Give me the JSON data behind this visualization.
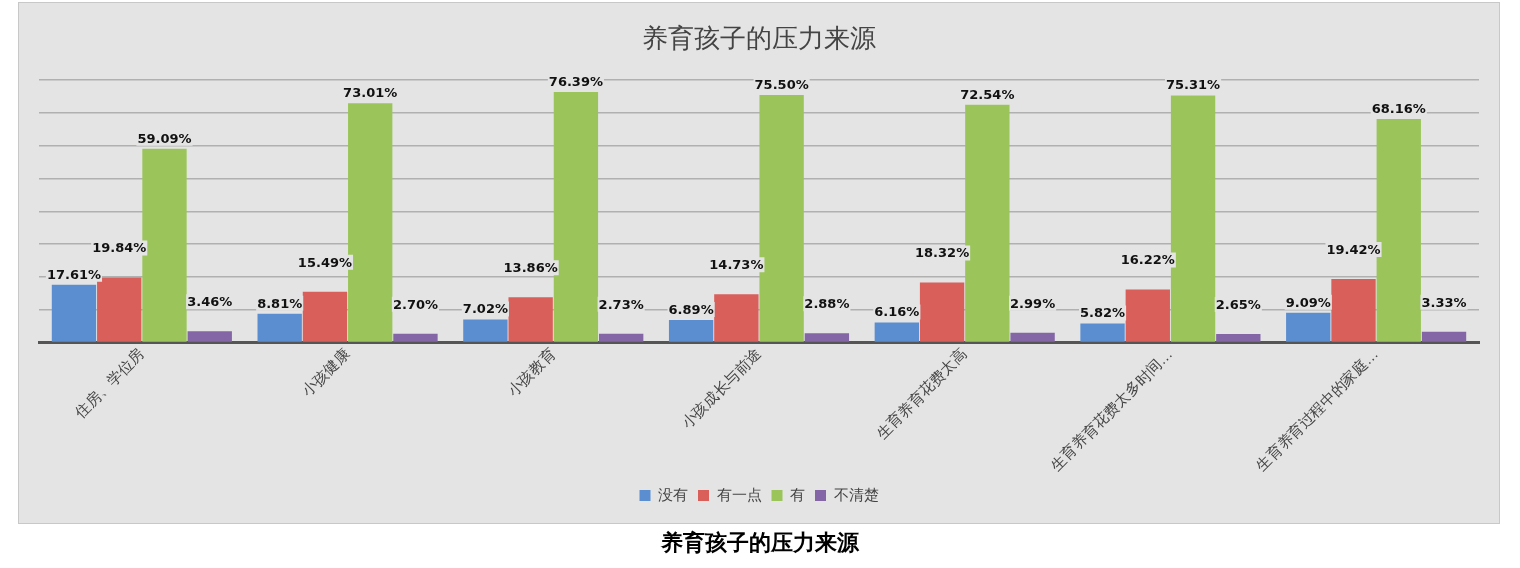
{
  "chart_data": {
    "type": "bar",
    "title": "养育孩子的压力来源",
    "categories": [
      "住房、学位房",
      "小孩健康",
      "小孩教育",
      "小孩成长与前途",
      "生育养育花费太高",
      "生育养育花费太多时间…",
      "生育养育过程中的家庭…"
    ],
    "series": [
      {
        "name": "没有",
        "color": "#5b8ed0",
        "values": [
          17.61,
          8.81,
          7.02,
          6.89,
          6.16,
          5.82,
          9.09
        ],
        "value_labels": [
          "17.61%",
          "8.81%",
          "7.02%",
          "6.89%",
          "6.16%",
          "5.82%",
          "9.09%"
        ]
      },
      {
        "name": "有一点",
        "color": "#d95f5b",
        "values": [
          19.84,
          15.49,
          13.86,
          14.73,
          18.32,
          16.22,
          19.42
        ],
        "value_labels": [
          "19.84%",
          "15.49%",
          "13.86%",
          "14.73%",
          "18.32%",
          "16.22%",
          "19.42%"
        ]
      },
      {
        "name": "有",
        "color": "#9bc55a",
        "values": [
          59.09,
          73.01,
          76.39,
          75.5,
          72.54,
          75.31,
          68.16
        ],
        "value_labels": [
          "59.09%",
          "73.01%",
          "76.39%",
          "75.50%",
          "72.54%",
          "75.31%",
          "68.16%"
        ]
      },
      {
        "name": "不清楚",
        "color": "#8466a6",
        "values": [
          3.46,
          2.7,
          2.73,
          2.88,
          2.99,
          2.65,
          3.33
        ],
        "value_labels": [
          "3.46%",
          "2.70%",
          "2.73%",
          "2.88%",
          "2.99%",
          "2.65%",
          "3.33%"
        ]
      }
    ],
    "tick_labels": "x",
    "grid": "y",
    "legend": "bottom",
    "annotations": [
      "养育孩子的压力来源"
    ]
  }
}
